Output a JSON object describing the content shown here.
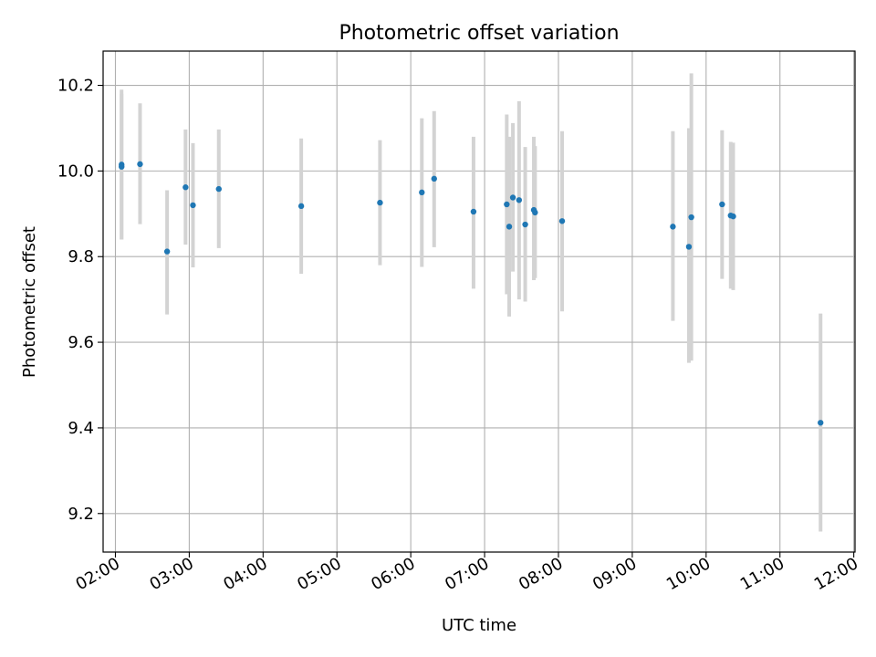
{
  "chart_data": {
    "type": "scatter",
    "title": "Photometric offset variation",
    "xlabel": "UTC time",
    "ylabel": "Photometric offset",
    "x_tick_labels": [
      "02:00",
      "03:00",
      "04:00",
      "05:00",
      "06:00",
      "07:00",
      "08:00",
      "09:00",
      "10:00",
      "11:00",
      "12:00"
    ],
    "x_tick_hours": [
      2,
      3,
      4,
      5,
      6,
      7,
      8,
      9,
      10,
      11,
      12
    ],
    "y_tick_labels": [
      "9.2",
      "9.4",
      "9.6",
      "9.8",
      "10.0",
      "10.2"
    ],
    "y_tick_values": [
      9.2,
      9.4,
      9.6,
      9.8,
      10.0,
      10.2
    ],
    "xlim": [
      "01:50",
      "12:01"
    ],
    "ylim": [
      9.11,
      10.28
    ],
    "grid": true,
    "point_color": "#1f77b4",
    "errorbar_color": "#d3d3d3",
    "series": [
      {
        "points": [
          {
            "x": "02:05",
            "y": 10.015,
            "ylow": 9.84,
            "yhigh": 10.19
          },
          {
            "x": "02:05",
            "y": 10.01,
            "ylow": 9.84,
            "yhigh": 10.18
          },
          {
            "x": "02:20",
            "y": 10.016,
            "ylow": 9.876,
            "yhigh": 10.158
          },
          {
            "x": "02:42",
            "y": 9.812,
            "ylow": 9.665,
            "yhigh": 9.955
          },
          {
            "x": "02:57",
            "y": 9.962,
            "ylow": 9.828,
            "yhigh": 10.097
          },
          {
            "x": "03:03",
            "y": 9.92,
            "ylow": 9.775,
            "yhigh": 10.065
          },
          {
            "x": "03:24",
            "y": 9.958,
            "ylow": 9.82,
            "yhigh": 10.097
          },
          {
            "x": "04:31",
            "y": 9.918,
            "ylow": 9.76,
            "yhigh": 10.076
          },
          {
            "x": "05:35",
            "y": 9.926,
            "ylow": 9.78,
            "yhigh": 10.072
          },
          {
            "x": "06:09",
            "y": 9.95,
            "ylow": 9.776,
            "yhigh": 10.123
          },
          {
            "x": "06:19",
            "y": 9.982,
            "ylow": 9.822,
            "yhigh": 10.14
          },
          {
            "x": "06:51",
            "y": 9.905,
            "ylow": 9.725,
            "yhigh": 10.08
          },
          {
            "x": "07:18",
            "y": 9.922,
            "ylow": 9.712,
            "yhigh": 10.132
          },
          {
            "x": "07:20",
            "y": 9.87,
            "ylow": 9.66,
            "yhigh": 10.08
          },
          {
            "x": "07:23",
            "y": 9.938,
            "ylow": 9.765,
            "yhigh": 10.112
          },
          {
            "x": "07:28",
            "y": 9.932,
            "ylow": 9.7,
            "yhigh": 10.163
          },
          {
            "x": "07:33",
            "y": 9.875,
            "ylow": 9.695,
            "yhigh": 10.056
          },
          {
            "x": "07:40",
            "y": 9.909,
            "ylow": 9.745,
            "yhigh": 10.08
          },
          {
            "x": "07:41",
            "y": 9.903,
            "ylow": 9.75,
            "yhigh": 10.058
          },
          {
            "x": "08:03",
            "y": 9.883,
            "ylow": 9.672,
            "yhigh": 10.093
          },
          {
            "x": "09:33",
            "y": 9.87,
            "ylow": 9.65,
            "yhigh": 10.093
          },
          {
            "x": "09:46",
            "y": 9.823,
            "ylow": 9.552,
            "yhigh": 10.1
          },
          {
            "x": "09:48",
            "y": 9.892,
            "ylow": 9.557,
            "yhigh": 10.228
          },
          {
            "x": "10:13",
            "y": 9.922,
            "ylow": 9.748,
            "yhigh": 10.095
          },
          {
            "x": "10:20",
            "y": 9.896,
            "ylow": 9.725,
            "yhigh": 10.068
          },
          {
            "x": "10:22",
            "y": 9.894,
            "ylow": 9.722,
            "yhigh": 10.066
          },
          {
            "x": "11:33",
            "y": 9.412,
            "ylow": 9.158,
            "yhigh": 9.667
          }
        ]
      }
    ]
  }
}
